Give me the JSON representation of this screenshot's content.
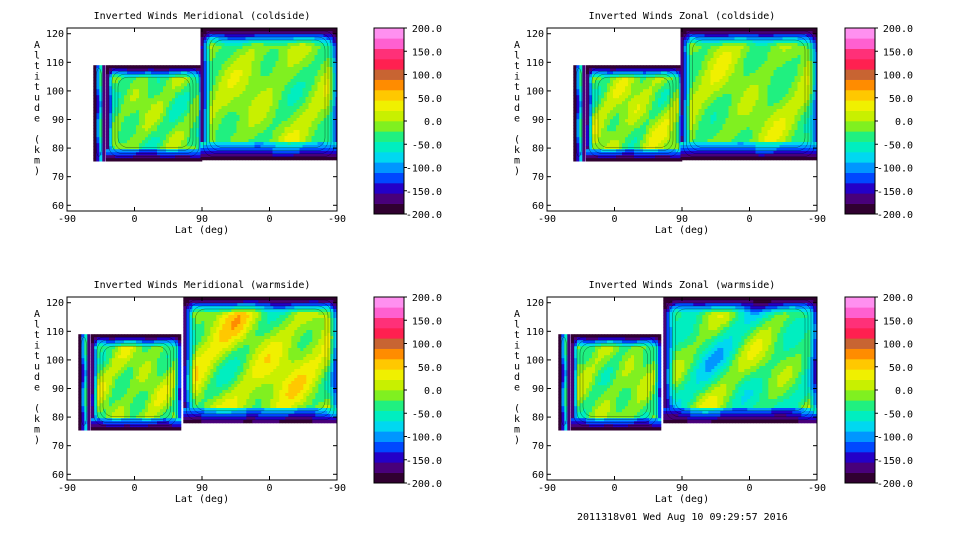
{
  "footer": "2011318v01 Wed Aug 10 09:29:57 2016",
  "colors": {
    "colorbar": [
      "#300030",
      "#48007a",
      "#2400c8",
      "#0048ff",
      "#0096ff",
      "#00d8f0",
      "#00eec0",
      "#20f080",
      "#80f020",
      "#c8f000",
      "#f0f000",
      "#ffc800",
      "#ff8c00",
      "#c86432",
      "#ff2050",
      "#ff3078",
      "#ff60d0",
      "#ff90f0"
    ]
  },
  "chart_data": [
    {
      "type": "contour",
      "title": "Inverted Winds Meridional (coldside)",
      "xlabel": "Lat (deg)",
      "ylabel": "Altitude (km)",
      "xticks": [
        "-90",
        "0",
        "90",
        "0",
        "-90"
      ],
      "yticks": [
        "60",
        "70",
        "80",
        "90",
        "100",
        "110",
        "120"
      ],
      "ylim": [
        58,
        122
      ],
      "colorbar_ticks": [
        "200.0",
        "150.0",
        "100.0",
        "50.0",
        "0.0",
        "-50.0",
        "-100.0",
        "-150.0",
        "-200.0"
      ],
      "colorbar_range": [
        -200,
        200
      ],
      "segments": [
        {
          "lat_range": [
            -55,
            -40
          ],
          "alt_range": [
            76,
            109
          ],
          "pattern": "edge"
        },
        {
          "lat_range": [
            -38,
            90
          ],
          "alt_range": [
            76,
            109
          ],
          "pattern": "blob",
          "peak": 30,
          "low": -70
        },
        {
          "lat_range": [
            92,
            90
          ],
          "alt_range": [
            76,
            122
          ],
          "pattern": "blob",
          "peak": 40,
          "low": -60
        }
      ]
    },
    {
      "type": "contour",
      "title": "Inverted Winds Zonal (coldside)",
      "xlabel": "Lat (deg)",
      "ylabel": "Altitude (km)",
      "xticks": [
        "-90",
        "0",
        "90",
        "0",
        "-90"
      ],
      "yticks": [
        "60",
        "70",
        "80",
        "90",
        "100",
        "110",
        "120"
      ],
      "ylim": [
        58,
        122
      ],
      "colorbar_ticks": [
        "200.0",
        "150.0",
        "100.0",
        "50.0",
        "0.0",
        "-50.0",
        "-100.0",
        "-150.0",
        "-200.0"
      ],
      "colorbar_range": [
        -200,
        200
      ],
      "segments": [
        {
          "lat_range": [
            -55,
            -40
          ],
          "alt_range": [
            76,
            109
          ],
          "pattern": "edge"
        },
        {
          "lat_range": [
            -38,
            90
          ],
          "alt_range": [
            76,
            109
          ],
          "pattern": "blob",
          "peak": 50,
          "low": -60
        },
        {
          "lat_range": [
            92,
            90
          ],
          "alt_range": [
            76,
            122
          ],
          "pattern": "blob",
          "peak": 40,
          "low": -60
        }
      ]
    },
    {
      "type": "contour",
      "title": "Inverted Winds Meridional (warmside)",
      "xlabel": "Lat (deg)",
      "ylabel": "Altitude (km)",
      "xticks": [
        "-90",
        "0",
        "90",
        "0",
        "-90"
      ],
      "yticks": [
        "60",
        "70",
        "80",
        "90",
        "100",
        "110",
        "120"
      ],
      "ylim": [
        58,
        122
      ],
      "colorbar_ticks": [
        "200.0",
        "150.0",
        "100.0",
        "50.0",
        "0.0",
        "-50.0",
        "-100.0",
        "-150.0",
        "-200.0"
      ],
      "colorbar_range": [
        -200,
        200
      ],
      "segments": [
        {
          "lat_range": [
            -75,
            -60
          ],
          "alt_range": [
            76,
            109
          ],
          "pattern": "edge"
        },
        {
          "lat_range": [
            -58,
            60
          ],
          "alt_range": [
            76,
            109
          ],
          "pattern": "blob",
          "peak": 40,
          "low": -60
        },
        {
          "lat_range": [
            115,
            90
          ],
          "alt_range": [
            78,
            122
          ],
          "pattern": "blob",
          "peak": 80,
          "low": -70
        }
      ]
    },
    {
      "type": "contour",
      "title": "Inverted Winds Zonal (warmside)",
      "xlabel": "Lat (deg)",
      "ylabel": "Altitude (km)",
      "xticks": [
        "-90",
        "0",
        "90",
        "0",
        "-90"
      ],
      "yticks": [
        "60",
        "70",
        "80",
        "90",
        "100",
        "110",
        "120"
      ],
      "ylim": [
        58,
        122
      ],
      "colorbar_ticks": [
        "200.0",
        "150.0",
        "100.0",
        "50.0",
        "0.0",
        "-50.0",
        "-100.0",
        "-150.0",
        "-200.0"
      ],
      "colorbar_range": [
        -200,
        200
      ],
      "segments": [
        {
          "lat_range": [
            -75,
            -60
          ],
          "alt_range": [
            76,
            109
          ],
          "pattern": "edge"
        },
        {
          "lat_range": [
            -58,
            60
          ],
          "alt_range": [
            76,
            109
          ],
          "pattern": "blob",
          "peak": 30,
          "low": -60
        },
        {
          "lat_range": [
            115,
            90
          ],
          "alt_range": [
            78,
            122
          ],
          "pattern": "blob",
          "peak": 50,
          "low": -110
        }
      ]
    }
  ]
}
